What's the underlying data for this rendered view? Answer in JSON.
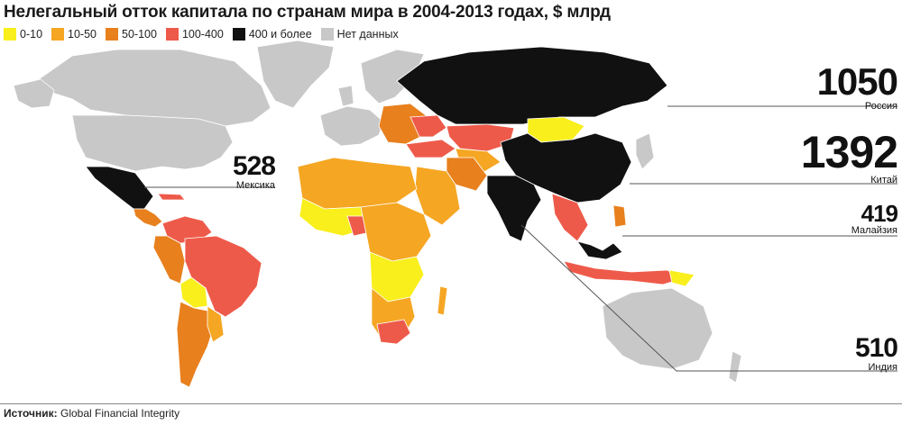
{
  "title": "Нелегальный отток капитала по странам мира в 2004-2013 годах, $ млрд",
  "legend": [
    {
      "label": "0-10",
      "color": "#f8ef1c"
    },
    {
      "label": "10-50",
      "color": "#f5a623"
    },
    {
      "label": "50-100",
      "color": "#e8801e"
    },
    {
      "label": "100-400",
      "color": "#ee5a4a"
    },
    {
      "label": "400 и более",
      "color": "#111111"
    },
    {
      "label": "Нет данных",
      "color": "#c8c8c8"
    }
  ],
  "callouts": {
    "russia": {
      "value": "1050",
      "label": "Россия"
    },
    "china": {
      "value": "1392",
      "label": "Китай"
    },
    "malaysia": {
      "value": "419",
      "label": "Малайзия"
    },
    "india": {
      "value": "510",
      "label": "Индия"
    },
    "mexico": {
      "value": "528",
      "label": "Мексика"
    }
  },
  "source": {
    "prefix": "Источник:",
    "text": "Global Financial Integrity"
  },
  "colors": {
    "nodata": "#c8c8c8",
    "c0_10": "#f8ef1c",
    "c10_50": "#f5a623",
    "c50_100": "#e8801e",
    "c100_400": "#ee5a4a",
    "c400": "#111111"
  }
}
